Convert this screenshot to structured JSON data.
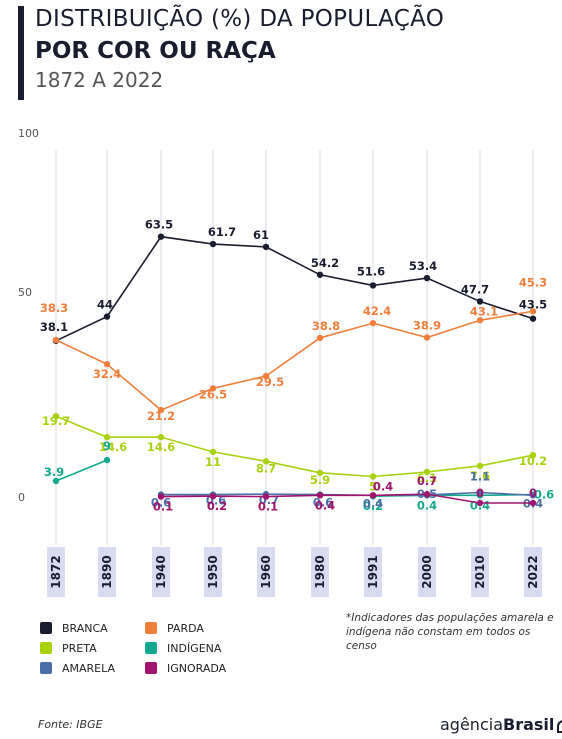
{
  "header": {
    "line1": "DISTRIBUIÇÃO  (%) DA POPULAÇÃO",
    "line2": "POR COR OU RAÇA",
    "line3": "1872 A 2022"
  },
  "note": "*Indicadores das populações amarela e indígena não constam em todos os censo",
  "source": "Fonte: IBGE",
  "brand": {
    "light": "agência",
    "bold": "Brasil",
    "icon": "speech-bubble-icon"
  },
  "chart_data": {
    "type": "line",
    "x": [
      "1872",
      "1890",
      "1940",
      "1950",
      "1960",
      "1980",
      "1991",
      "2000",
      "2010",
      "2022"
    ],
    "y_ticks": [
      "100",
      "50",
      "0"
    ],
    "ylim": [
      0,
      100
    ],
    "legend_position": "bottom-left",
    "series": [
      {
        "name": "BRANCA",
        "color": "#1a1d2e",
        "values": [
          38.1,
          44,
          63.5,
          61.7,
          61,
          54.2,
          51.6,
          53.4,
          47.7,
          43.5
        ],
        "labels": [
          "38.1",
          "44",
          "63.5",
          "61.7",
          "61",
          "54.2",
          "51.6",
          "53.4",
          "47.7",
          "43.5"
        ]
      },
      {
        "name": "PARDA",
        "color": "#f07f3c",
        "values": [
          38.3,
          32.4,
          21.2,
          26.5,
          29.5,
          38.8,
          42.4,
          38.9,
          43.1,
          45.3
        ],
        "labels": [
          "38.3",
          "32.4",
          "21.2",
          "26.5",
          "29.5",
          "38.8",
          "42.4",
          "38.9",
          "43.1",
          "45.3"
        ]
      },
      {
        "name": "PRETA",
        "color": "#a8d10f",
        "values": [
          19.7,
          14.6,
          14.6,
          11,
          8.7,
          5.9,
          5,
          6.1,
          7.6,
          10.2
        ],
        "labels": [
          "19.7",
          "14.6",
          "14.6",
          "11",
          "8.7",
          "5.9",
          "5",
          "6.1",
          "7.6",
          "10.2"
        ]
      },
      {
        "name": "INDÍGENA",
        "color": "#13a98a",
        "values": [
          3.9,
          9,
          null,
          null,
          null,
          null,
          0.2,
          0.4,
          0.4,
          0.6
        ],
        "labels": [
          "3.9",
          "9",
          null,
          null,
          null,
          null,
          "0.2",
          "0.4",
          "0.4",
          "0.6"
        ]
      },
      {
        "name": "AMARELA",
        "color": "#4c6ea8",
        "values": [
          null,
          null,
          0.6,
          0.6,
          0.7,
          0.6,
          0.4,
          0.5,
          1.1,
          0.4
        ],
        "labels": [
          null,
          null,
          "0.6",
          "0.6",
          "0.7",
          "0.6",
          "0.4",
          "0.5",
          "1.1",
          "0.4"
        ]
      },
      {
        "name": "IGNORADA",
        "color": "#a0146e",
        "values": [
          null,
          null,
          0.1,
          0.2,
          0.1,
          0.4,
          0.4,
          0.7,
          0,
          0
        ],
        "labels": [
          null,
          null,
          "0.1",
          "0.2",
          "0.1",
          "0.4",
          "0.4",
          "0.7",
          "0",
          "0"
        ]
      }
    ]
  }
}
